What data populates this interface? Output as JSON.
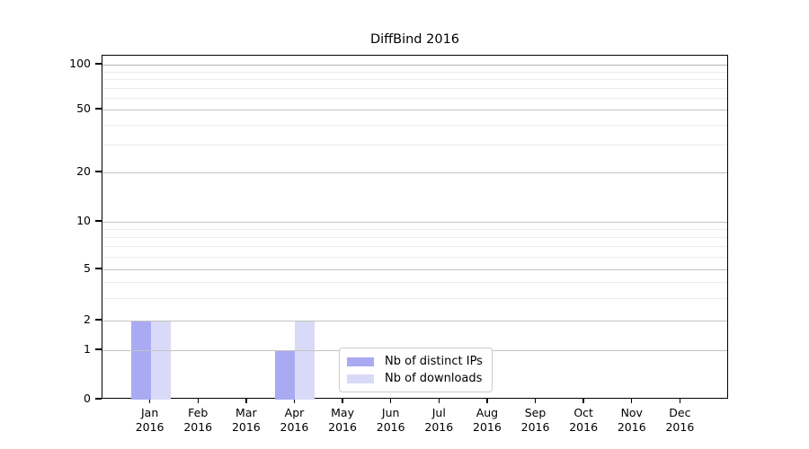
{
  "chart_data": {
    "type": "bar",
    "title": "DiffBind 2016",
    "categories": [
      "Jan",
      "Feb",
      "Mar",
      "Apr",
      "May",
      "Jun",
      "Jul",
      "Aug",
      "Sep",
      "Oct",
      "Nov",
      "Dec"
    ],
    "year_label": "2016",
    "series": [
      {
        "name": "Nb of distinct IPs",
        "color": "#a9aaf1",
        "values": [
          2,
          0,
          0,
          1,
          0,
          0,
          0,
          0,
          0,
          0,
          0,
          0
        ]
      },
      {
        "name": "Nb of downloads",
        "color": "#d9daf8",
        "values": [
          2,
          0,
          0,
          2,
          0,
          0,
          0,
          0,
          0,
          0,
          0,
          0
        ]
      }
    ],
    "y_ticks": [
      0,
      1,
      2,
      5,
      10,
      20,
      50,
      100
    ],
    "y_minor_gridlines": [
      3,
      4,
      6,
      7,
      8,
      9,
      30,
      40,
      60,
      70,
      80,
      90
    ],
    "y_scale": "log-with-zero",
    "ylim": [
      0,
      100
    ],
    "grid": "horizontal",
    "legend_position": "inside-bottom-center",
    "grid_major_color": "#c3c3c3",
    "grid_minor_color": "#ececec"
  }
}
